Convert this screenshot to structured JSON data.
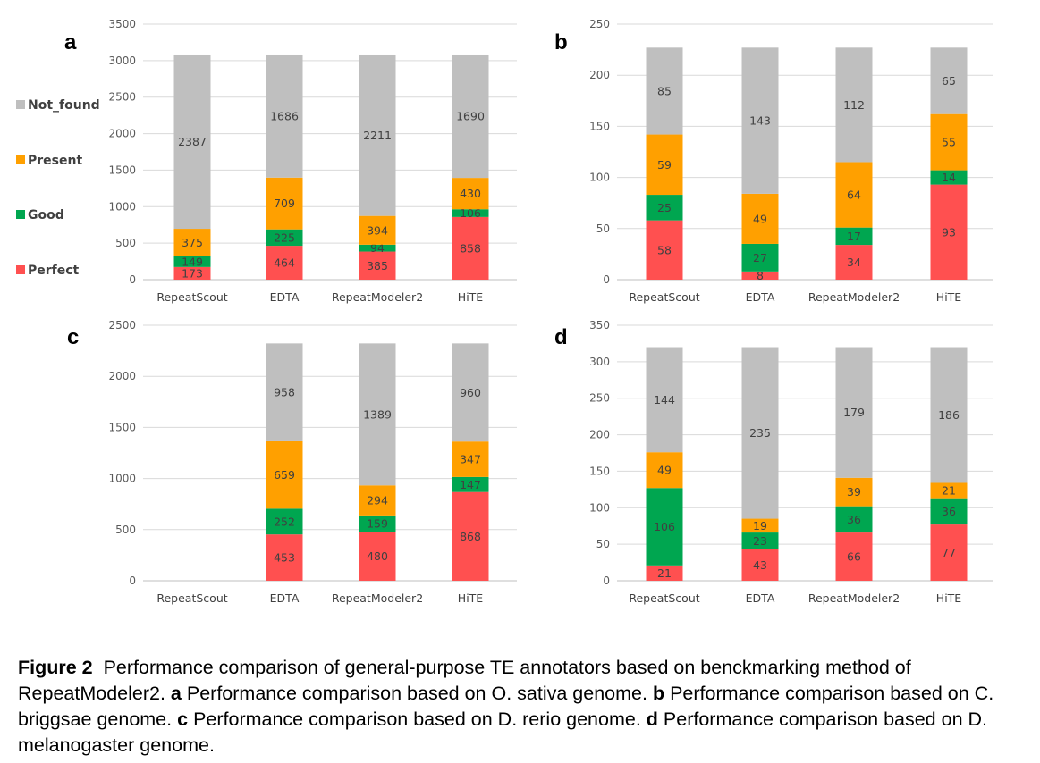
{
  "colors": {
    "Perfect": "#ff5050",
    "Good": "#00a650",
    "Present": "#ffa000",
    "Not_found": "#bfbfbf",
    "grid": "#d9d9d9"
  },
  "legend": [
    {
      "key": "Not_found",
      "label": "Not_found"
    },
    {
      "key": "Present",
      "label": "Present"
    },
    {
      "key": "Good",
      "label": "Good"
    },
    {
      "key": "Perfect",
      "label": "Perfect"
    }
  ],
  "chart_data": [
    {
      "panel": "a",
      "type": "bar",
      "stacked": true,
      "categories": [
        "RepeatScout",
        "EDTA",
        "RepeatModeler2",
        "HiTE"
      ],
      "ylim": [
        0,
        3500
      ],
      "ticks": [
        0,
        500,
        1000,
        1500,
        2000,
        2500,
        3000,
        3500
      ],
      "series": [
        {
          "name": "Perfect",
          "values": [
            173,
            464,
            385,
            858
          ]
        },
        {
          "name": "Good",
          "values": [
            149,
            225,
            94,
            106
          ]
        },
        {
          "name": "Present",
          "values": [
            375,
            709,
            394,
            430
          ]
        },
        {
          "name": "Not_found",
          "values": [
            2387,
            1686,
            2211,
            1690
          ]
        }
      ]
    },
    {
      "panel": "b",
      "type": "bar",
      "stacked": true,
      "categories": [
        "RepeatScout",
        "EDTA",
        "RepeatModeler2",
        "HiTE"
      ],
      "ylim": [
        0,
        250
      ],
      "ticks": [
        0,
        50,
        100,
        150,
        200,
        250
      ],
      "series": [
        {
          "name": "Perfect",
          "values": [
            58,
            8,
            34,
            93
          ]
        },
        {
          "name": "Good",
          "values": [
            25,
            27,
            17,
            14
          ]
        },
        {
          "name": "Present",
          "values": [
            59,
            49,
            64,
            55
          ]
        },
        {
          "name": "Not_found",
          "values": [
            85,
            143,
            112,
            65
          ]
        }
      ]
    },
    {
      "panel": "c",
      "type": "bar",
      "stacked": true,
      "categories": [
        "RepeatScout",
        "EDTA",
        "RepeatModeler2",
        "HiTE"
      ],
      "ylim": [
        0,
        2500
      ],
      "ticks": [
        0,
        500,
        1000,
        1500,
        2000,
        2500
      ],
      "series": [
        {
          "name": "Perfect",
          "values": [
            null,
            453,
            480,
            868
          ]
        },
        {
          "name": "Good",
          "values": [
            null,
            252,
            159,
            147
          ]
        },
        {
          "name": "Present",
          "values": [
            null,
            659,
            294,
            347
          ]
        },
        {
          "name": "Not_found",
          "values": [
            null,
            958,
            1389,
            960
          ]
        }
      ]
    },
    {
      "panel": "d",
      "type": "bar",
      "stacked": true,
      "categories": [
        "RepeatScout",
        "EDTA",
        "RepeatModeler2",
        "HiTE"
      ],
      "ylim": [
        0,
        350
      ],
      "ticks": [
        0,
        50,
        100,
        150,
        200,
        250,
        300,
        350
      ],
      "series": [
        {
          "name": "Perfect",
          "values": [
            21,
            43,
            66,
            77
          ]
        },
        {
          "name": "Good",
          "values": [
            106,
            23,
            36,
            36
          ]
        },
        {
          "name": "Present",
          "values": [
            49,
            19,
            39,
            21
          ]
        },
        {
          "name": "Not_found",
          "values": [
            144,
            235,
            179,
            186
          ]
        }
      ]
    }
  ],
  "caption": {
    "figure_label": "Figure 2",
    "lead": "Performance comparison of general-purpose TE annotators based on benckmarking method of RepeatModeler2.",
    "parts": [
      {
        "letter": "a",
        "text": "Performance comparison based on O. sativa genome."
      },
      {
        "letter": "b",
        "text": "Performance comparison based on C. briggsae genome."
      },
      {
        "letter": "c",
        "text": "Performance comparison based on D. rerio genome."
      },
      {
        "letter": "d",
        "text": "Performance comparison based on D. melanogaster genome."
      }
    ]
  }
}
